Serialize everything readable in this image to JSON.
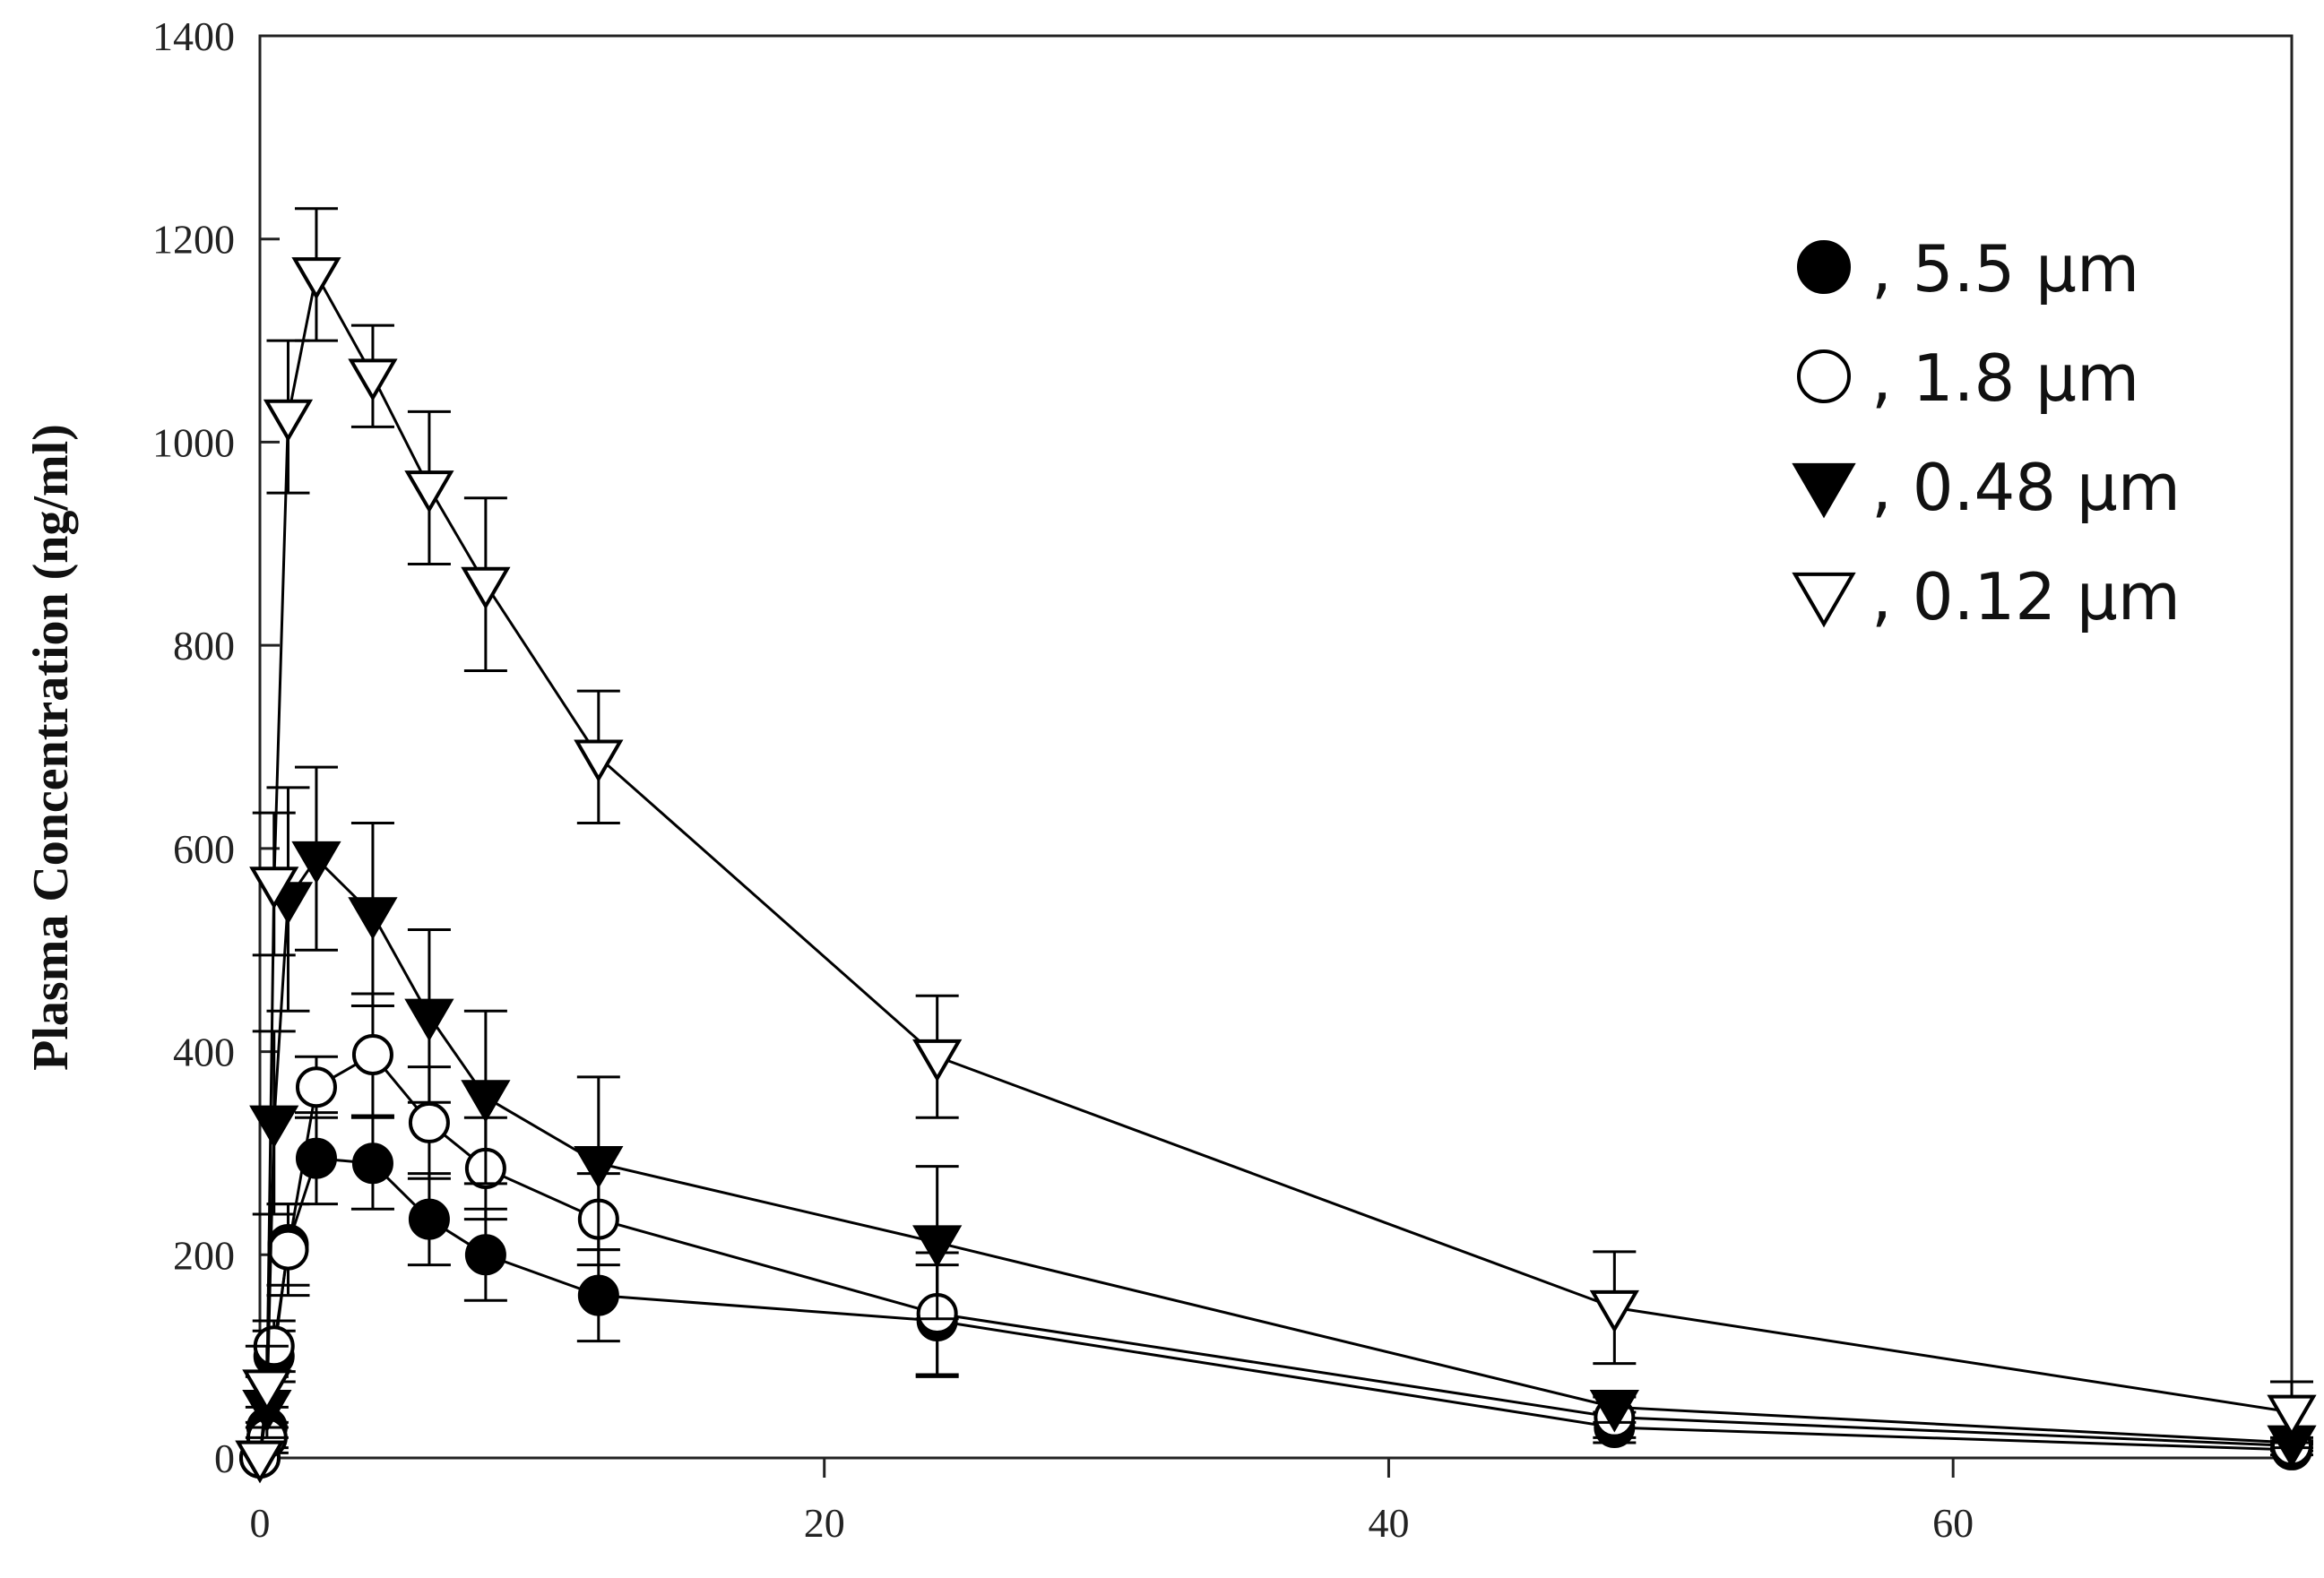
{
  "chart_data": {
    "type": "line",
    "title": "",
    "xlabel": "",
    "ylabel": "Plasma Concentration (ng/ml)",
    "xlim": [
      0,
      72
    ],
    "ylim": [
      0,
      1400
    ],
    "xticks": [
      0,
      20,
      40,
      60
    ],
    "yticks": [
      0,
      200,
      400,
      600,
      800,
      1000,
      1200,
      1400
    ],
    "grid": false,
    "legend_position": "top-right",
    "series": [
      {
        "name": "5.5 μm",
        "legend_label": ", 5.5 μm",
        "marker": "circle-filled",
        "x": [
          0,
          0.25,
          0.5,
          1,
          2,
          4,
          6,
          8,
          12,
          24,
          48,
          72
        ],
        "y": [
          0,
          30,
          100,
          210,
          295,
          290,
          235,
          200,
          160,
          135,
          30,
          8
        ],
        "err": [
          0,
          20,
          25,
          40,
          45,
          45,
          45,
          45,
          45,
          55,
          15,
          5
        ]
      },
      {
        "name": "1.8 μm",
        "legend_label": ", 1.8 μm",
        "marker": "circle-open",
        "x": [
          0,
          0.25,
          0.5,
          1,
          2,
          4,
          6,
          8,
          12,
          24,
          48,
          72
        ],
        "y": [
          0,
          20,
          110,
          205,
          365,
          397,
          330,
          285,
          235,
          142,
          40,
          12
        ],
        "err": [
          0,
          15,
          25,
          45,
          30,
          60,
          55,
          50,
          45,
          60,
          20,
          5
        ]
      },
      {
        "name": "0.48 μm",
        "legend_label": ", 0.48 μm",
        "marker": "triangle-down-filled",
        "x": [
          0,
          0.25,
          0.5,
          1,
          2,
          4,
          6,
          8,
          12,
          24,
          48,
          72
        ],
        "y": [
          0,
          50,
          330,
          550,
          590,
          535,
          435,
          355,
          290,
          212,
          50,
          15
        ],
        "err": [
          0,
          30,
          90,
          110,
          90,
          90,
          85,
          85,
          85,
          75,
          15,
          5
        ]
      },
      {
        "name": "0.12 μm",
        "legend_label": ", 0.12 μm",
        "marker": "triangle-down-open",
        "x": [
          0,
          0.25,
          0.5,
          1,
          2,
          4,
          6,
          8,
          12,
          24,
          48,
          72
        ],
        "y": [
          0,
          70,
          565,
          1025,
          1165,
          1065,
          955,
          860,
          690,
          395,
          148,
          45
        ],
        "err": [
          0,
          40,
          70,
          75,
          65,
          50,
          75,
          85,
          65,
          60,
          55,
          30
        ]
      }
    ]
  }
}
